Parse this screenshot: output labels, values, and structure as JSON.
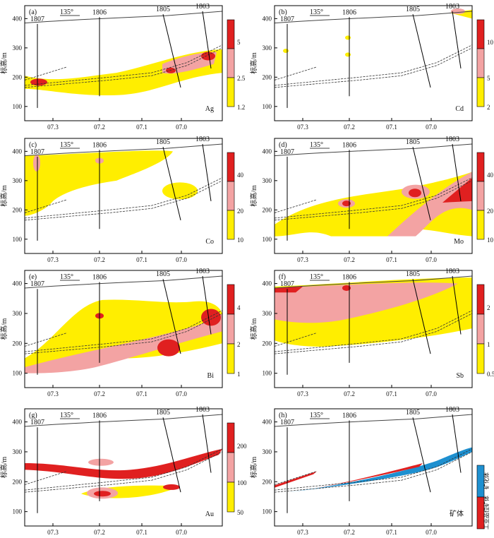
{
  "colors": {
    "yellow": "#ffee00",
    "pink": "#f3a3a3",
    "red": "#e02020",
    "blue": "#1e90d0",
    "frame": "#000000"
  },
  "common": {
    "azimuth": "135°",
    "y_axis_label": "标高/m",
    "y_ticks": [
      "100",
      "200",
      "300",
      "400"
    ],
    "x_ticks": [
      "07.3",
      "07.2",
      "07.1",
      "07.0"
    ],
    "drillholes": [
      "1807",
      "1806",
      "1805",
      "1803"
    ]
  },
  "panels": [
    {
      "id": "a",
      "letter": "(a)",
      "element": "Ag",
      "legend": [
        "5",
        "2.5",
        "1.2"
      ]
    },
    {
      "id": "b",
      "letter": "(b)",
      "element": "Cd",
      "legend": [
        "10",
        "5",
        "2"
      ]
    },
    {
      "id": "c",
      "letter": "(c)",
      "element": "Co",
      "legend": [
        "40",
        "20",
        "10"
      ]
    },
    {
      "id": "d",
      "letter": "(d)",
      "element": "Mo",
      "legend": [
        "40",
        "20",
        "10"
      ]
    },
    {
      "id": "e",
      "letter": "(e)",
      "element": "Bi",
      "legend": [
        "4",
        "2",
        "1"
      ]
    },
    {
      "id": "f",
      "letter": "(f)",
      "element": "Sb",
      "legend": [
        "2",
        "1",
        "0.5"
      ]
    },
    {
      "id": "g",
      "letter": "(g)",
      "element": "Au",
      "legend": [
        "200",
        "100",
        "50"
      ]
    },
    {
      "id": "h",
      "letter": "(h)",
      "element": "矿体",
      "legend_h": [
        "矿化体",
        "工业品位矿体"
      ]
    }
  ]
}
